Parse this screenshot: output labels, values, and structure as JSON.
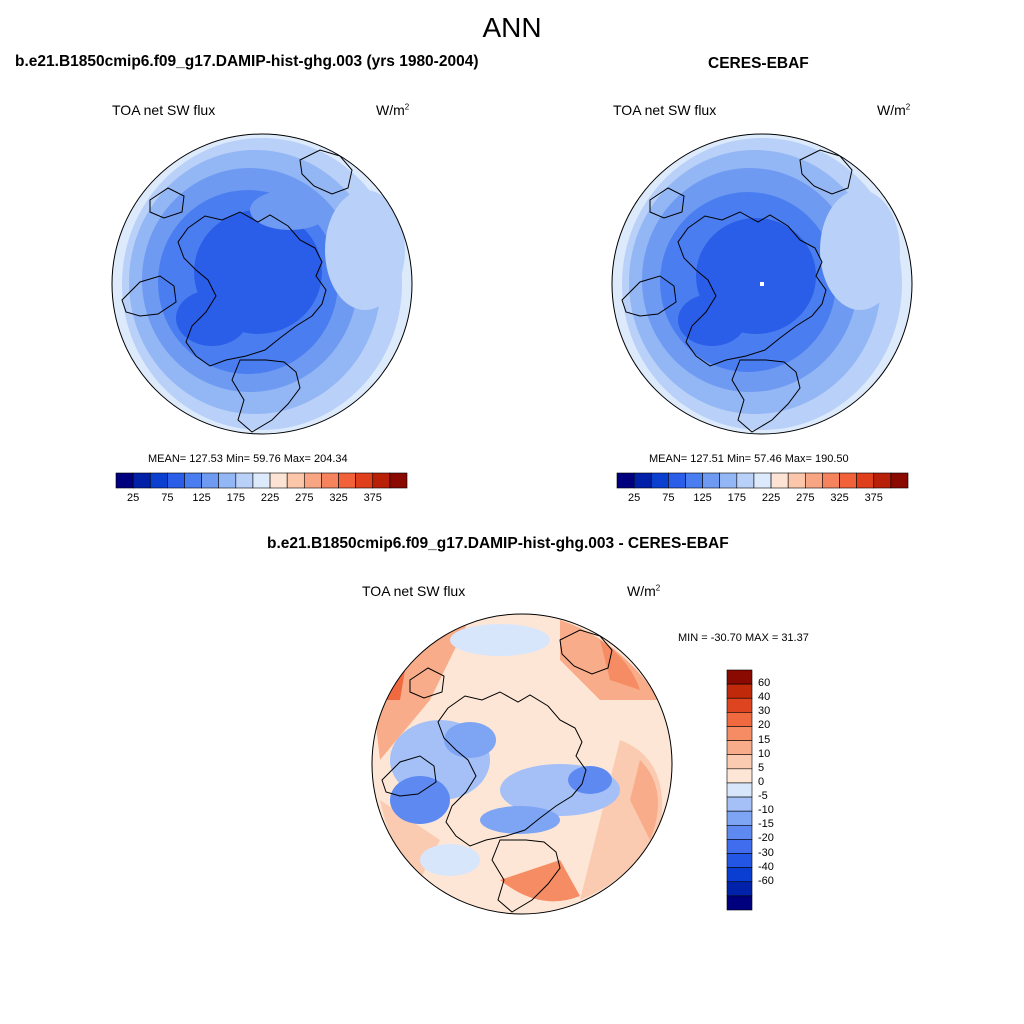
{
  "title": "ANN",
  "colors": {
    "main_scale": [
      "#00007f",
      "#0020a8",
      "#0a3fd0",
      "#2a5ee8",
      "#4a7df0",
      "#6f9af2",
      "#93b6f5",
      "#b9d0f8",
      "#dceafc",
      "#fde3d3",
      "#fbc6aa",
      "#f8a584",
      "#f4835e",
      "#f1613a",
      "#e03f1b",
      "#b82008",
      "#8a0a02"
    ],
    "diff_scale": [
      "#00007f",
      "#0022aa",
      "#0a3ed2",
      "#2456e6",
      "#3f6ded",
      "#5d89f1",
      "#7ea4f4",
      "#a4c0f7",
      "#d8e6fb",
      "#fde6d6",
      "#fbcbb1",
      "#f8ac8a",
      "#f58c63",
      "#f1693f",
      "#de4420",
      "#c02a0a",
      "#8a0a02"
    ]
  },
  "panels": {
    "model": {
      "title": "b.e21.B1850cmip6.f09_g17.DAMIP-hist-ghg.003 (yrs 1980-2004)",
      "variable": "TOA net SW flux",
      "units": "W/m",
      "units_sup": "2",
      "stats": "MEAN= 127.53  Min=  59.76  Max= 204.34"
    },
    "obs": {
      "title": "CERES-EBAF",
      "variable": "TOA net SW flux",
      "units": "W/m",
      "units_sup": "2",
      "stats": "MEAN= 127.51  Min=  57.46  Max= 190.50"
    },
    "diff": {
      "title": "b.e21.B1850cmip6.f09_g17.DAMIP-hist-ghg.003 - CERES-EBAF",
      "variable": "TOA net SW flux",
      "units": "W/m",
      "units_sup": "2",
      "minmax": "MIN = -30.70 MAX =  31.37"
    }
  },
  "main_colorbar_ticks": [
    "25",
    "75",
    "125",
    "175",
    "225",
    "275",
    "325",
    "375"
  ],
  "diff_colorbar_ticks": [
    "60",
    "40",
    "30",
    "20",
    "15",
    "10",
    "5",
    "0",
    "-5",
    "-10",
    "-15",
    "-20",
    "-30",
    "-40",
    "-60"
  ]
}
